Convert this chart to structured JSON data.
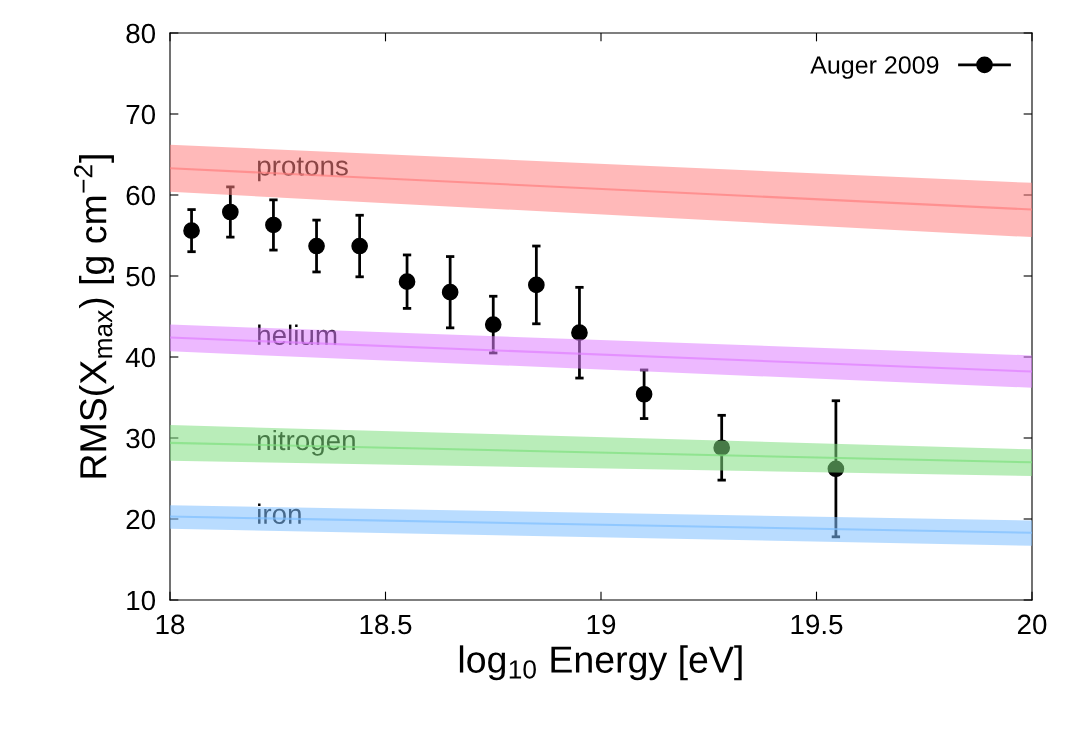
{
  "chart_data": {
    "type": "scatter",
    "xlabel": "log$_{10}$ Energy [eV]",
    "ylabel": "RMS(X$_{max}$) [g cm$^{−2}$]",
    "xlim": [
      18,
      20
    ],
    "ylim": [
      10,
      80
    ],
    "xticks": [
      18,
      18.5,
      19,
      19.5,
      20
    ],
    "yticks": [
      10,
      20,
      30,
      40,
      50,
      60,
      70,
      80
    ],
    "grid": false,
    "legend": "top right",
    "marker": "circle",
    "series": [
      {
        "type": "line",
        "name": "protons",
        "color": "#ff7f7f",
        "marker": "none",
        "x": [
          18,
          20
        ],
        "values": [
          63.3,
          58.2
        ],
        "lower": [
          60.4,
          54.8
        ],
        "upper": [
          66.2,
          61.5
        ]
      },
      {
        "type": "line",
        "name": "helium",
        "color": "#df7fff",
        "marker": "none",
        "x": [
          18,
          20
        ],
        "values": [
          42.4,
          38.2
        ],
        "lower": [
          40.7,
          36.2
        ],
        "upper": [
          44.0,
          40.2
        ]
      },
      {
        "type": "line",
        "name": "nitrogen",
        "color": "#7fdf7f",
        "marker": "none",
        "x": [
          18,
          20
        ],
        "values": [
          29.4,
          27.0
        ],
        "lower": [
          27.2,
          25.3
        ],
        "upper": [
          31.6,
          28.6
        ]
      },
      {
        "type": "line",
        "name": "iron",
        "color": "#7fbfff",
        "marker": "none",
        "x": [
          18,
          20
        ],
        "values": [
          20.3,
          18.3
        ],
        "lower": [
          18.8,
          16.7
        ],
        "upper": [
          21.7,
          19.8
        ]
      },
      {
        "name": "Auger 2009",
        "color": "#000000",
        "x": [
          18.05,
          18.14,
          18.24,
          18.34,
          18.44,
          18.55,
          18.65,
          18.75,
          18.85,
          18.95,
          19.1,
          19.28,
          19.545
        ],
        "values": [
          55.6,
          57.9,
          56.3,
          53.7,
          53.7,
          49.3,
          48.0,
          44.0,
          48.9,
          43.0,
          35.4,
          28.8,
          26.2
        ],
        "errors": [
          2.6,
          3.1,
          3.1,
          3.2,
          3.8,
          3.3,
          4.4,
          3.5,
          4.8,
          5.6,
          3.0,
          4.0,
          8.4
        ]
      }
    ]
  }
}
